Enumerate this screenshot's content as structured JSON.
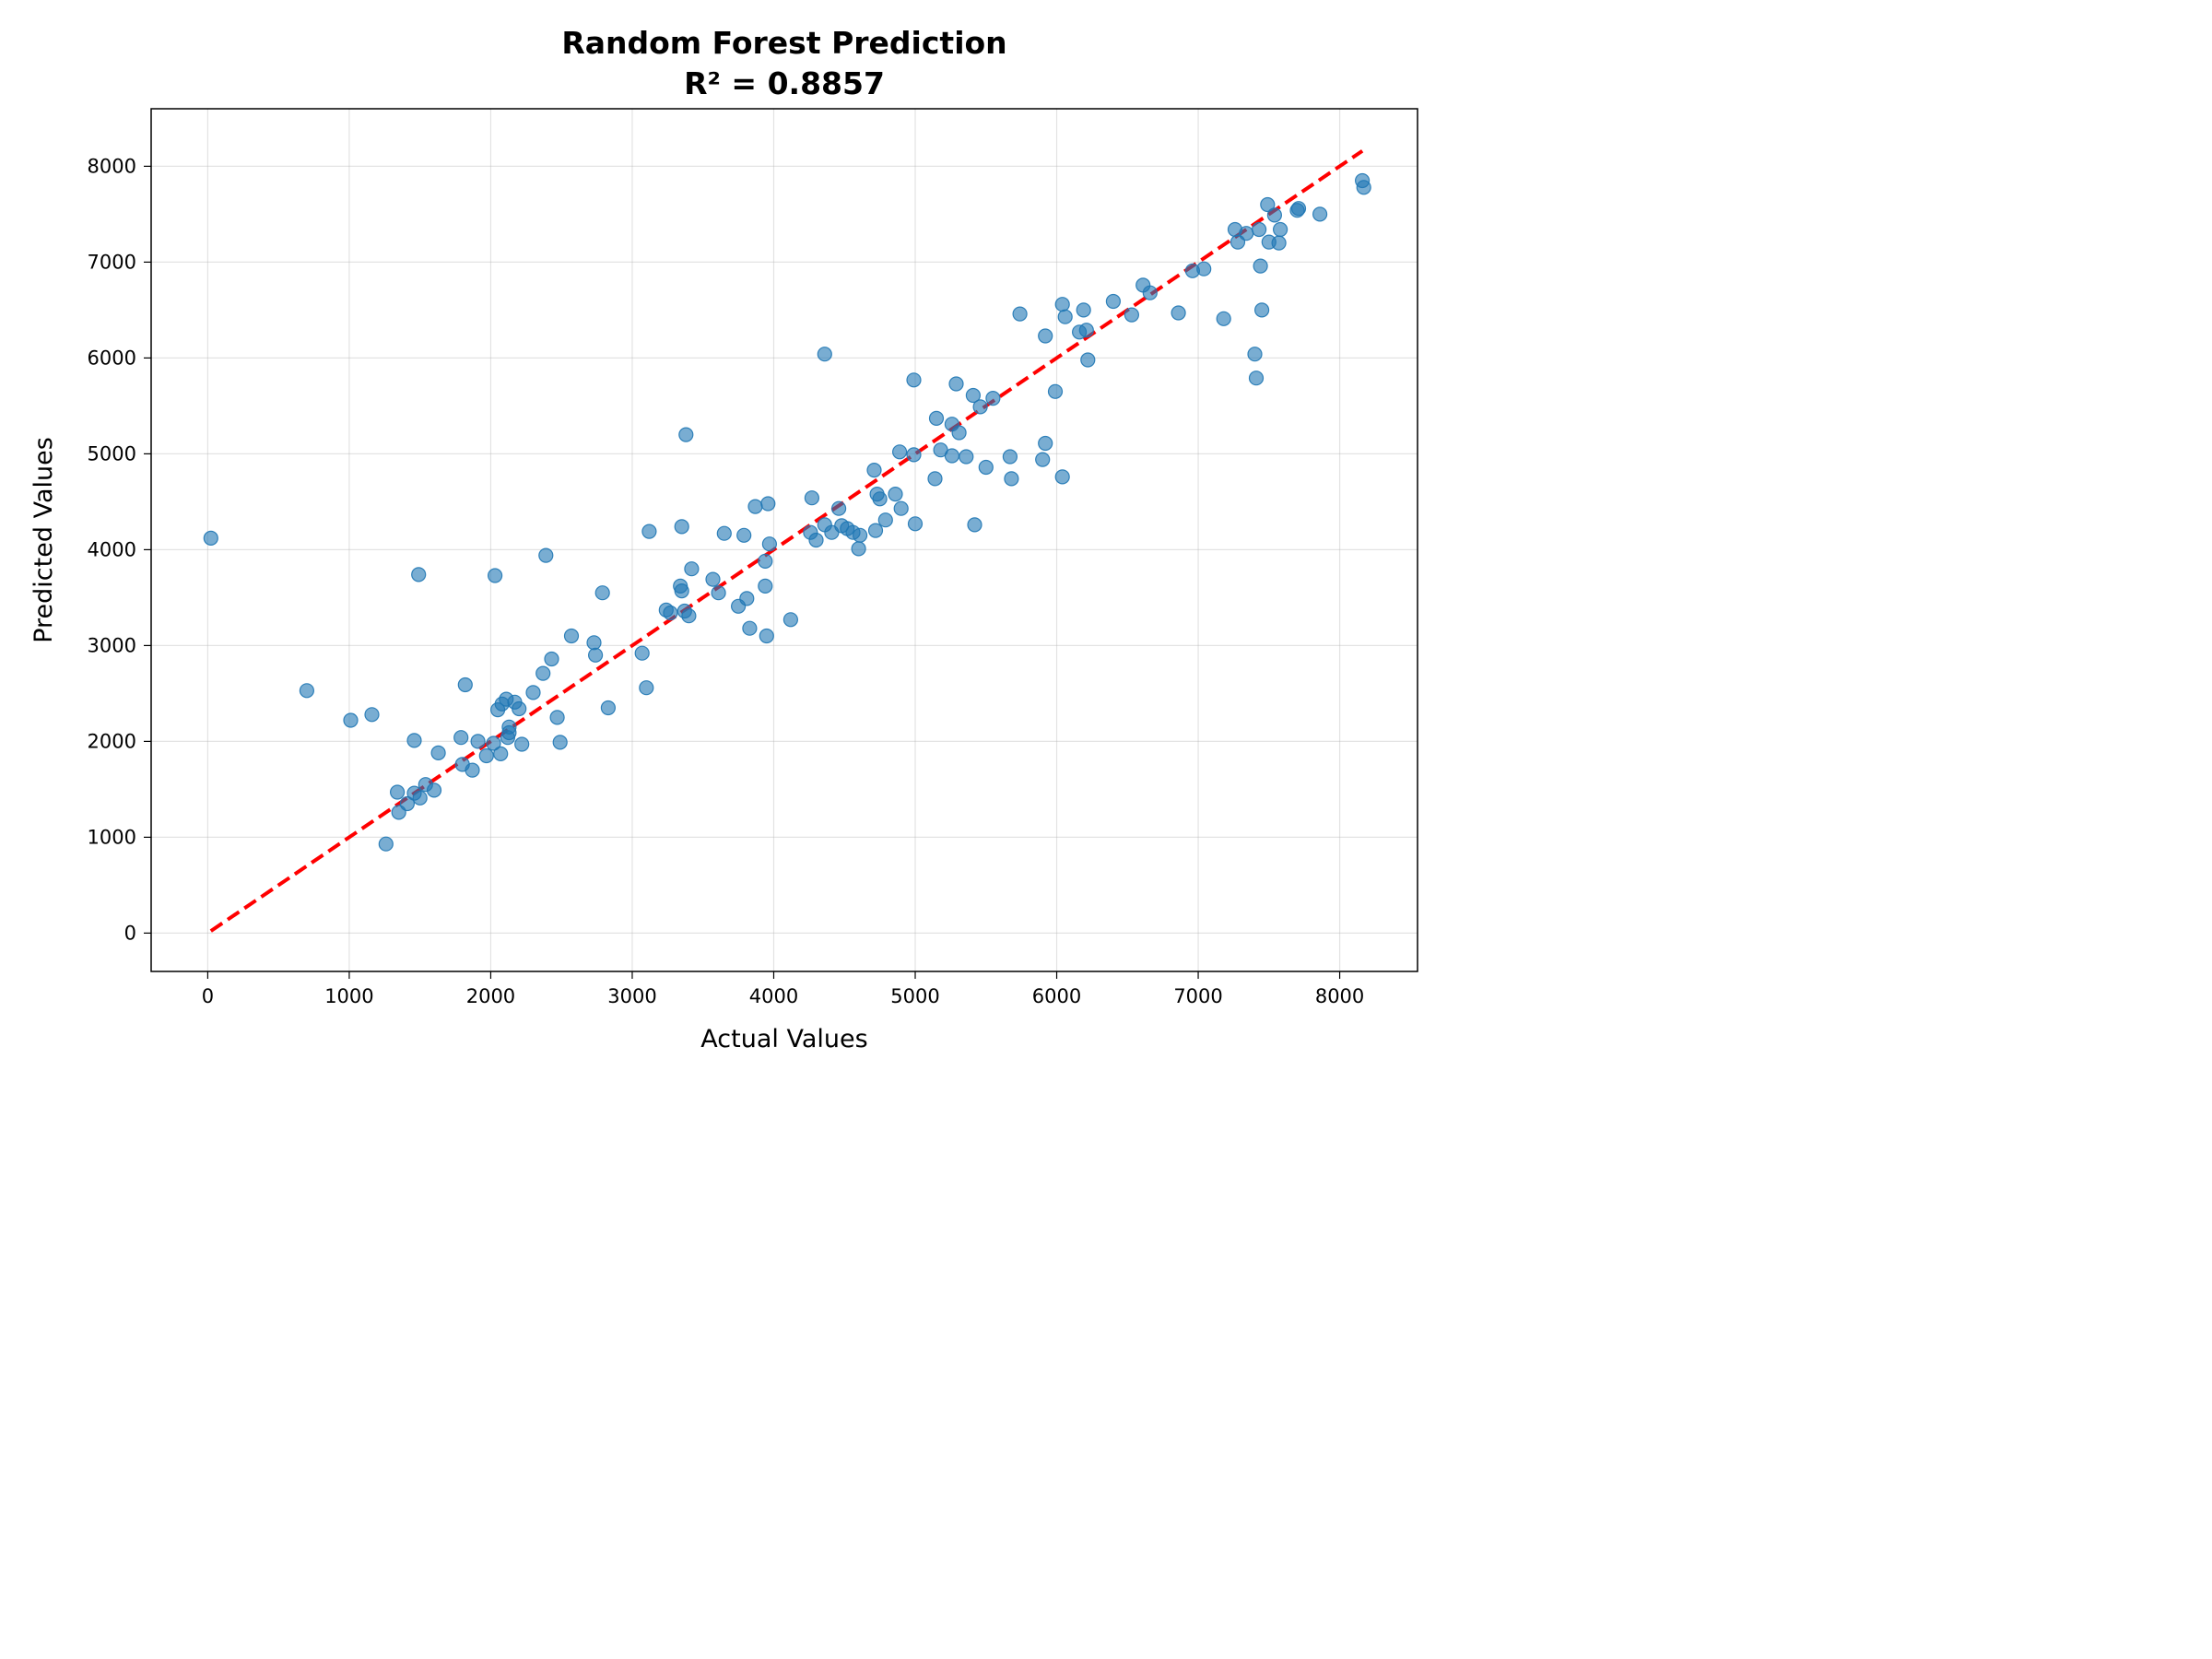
{
  "chart_data": {
    "type": "scatter",
    "title": "Random Forest Prediction",
    "subtitle": "R² = 0.8857",
    "xlabel": "Actual Values",
    "ylabel": "Predicted Values",
    "xlim": [
      -400,
      8550
    ],
    "ylim": [
      -400,
      8600
    ],
    "xticks": [
      0,
      1000,
      2000,
      3000,
      4000,
      5000,
      6000,
      7000,
      8000
    ],
    "yticks": [
      0,
      1000,
      2000,
      3000,
      4000,
      5000,
      6000,
      7000,
      8000
    ],
    "xtick_labels": [
      "0",
      "1000",
      "2000",
      "3000",
      "4000",
      "5000",
      "6000",
      "7000",
      "8000"
    ],
    "ytick_labels": [
      "0",
      "1000",
      "2000",
      "3000",
      "4000",
      "5000",
      "6000",
      "7000",
      "8000"
    ],
    "grid": true,
    "colors": {
      "points": "#1f77b4",
      "reference_line": "#ff0000"
    },
    "reference_line": {
      "style": "dashed",
      "from": [
        22,
        22
      ],
      "to": [
        8160,
        8160
      ]
    },
    "points": [
      [
        22,
        4120
      ],
      [
        700,
        2530
      ],
      [
        1010,
        2220
      ],
      [
        1160,
        2280
      ],
      [
        1260,
        930
      ],
      [
        1340,
        1470
      ],
      [
        1350,
        1260
      ],
      [
        1410,
        1350
      ],
      [
        1460,
        2010
      ],
      [
        1460,
        1460
      ],
      [
        1490,
        3740
      ],
      [
        1500,
        1410
      ],
      [
        1540,
        1550
      ],
      [
        1600,
        1490
      ],
      [
        1630,
        1880
      ],
      [
        1790,
        2040
      ],
      [
        1800,
        1760
      ],
      [
        1820,
        2590
      ],
      [
        1870,
        1700
      ],
      [
        1910,
        2000
      ],
      [
        1970,
        1850
      ],
      [
        2020,
        1980
      ],
      [
        2030,
        3730
      ],
      [
        2050,
        2330
      ],
      [
        2070,
        1870
      ],
      [
        2080,
        2390
      ],
      [
        2110,
        2440
      ],
      [
        2120,
        2040
      ],
      [
        2130,
        2150
      ],
      [
        2130,
        2090
      ],
      [
        2170,
        2410
      ],
      [
        2200,
        2340
      ],
      [
        2220,
        1970
      ],
      [
        2300,
        2510
      ],
      [
        2370,
        2710
      ],
      [
        2390,
        3940
      ],
      [
        2430,
        2860
      ],
      [
        2470,
        2250
      ],
      [
        2490,
        1990
      ],
      [
        2570,
        3100
      ],
      [
        2730,
        3030
      ],
      [
        2740,
        2900
      ],
      [
        2790,
        3550
      ],
      [
        2830,
        2350
      ],
      [
        3070,
        2920
      ],
      [
        3100,
        2560
      ],
      [
        3120,
        4190
      ],
      [
        3240,
        3370
      ],
      [
        3270,
        3340
      ],
      [
        3340,
        3620
      ],
      [
        3350,
        3570
      ],
      [
        3350,
        4240
      ],
      [
        3370,
        3360
      ],
      [
        3380,
        5200
      ],
      [
        3400,
        3310
      ],
      [
        3420,
        3800
      ],
      [
        3570,
        3690
      ],
      [
        3610,
        3550
      ],
      [
        3650,
        4170
      ],
      [
        3750,
        3410
      ],
      [
        3790,
        4150
      ],
      [
        3810,
        3490
      ],
      [
        3830,
        3180
      ],
      [
        3870,
        4450
      ],
      [
        3940,
        3620
      ],
      [
        3940,
        3880
      ],
      [
        3950,
        3100
      ],
      [
        3960,
        4480
      ],
      [
        3970,
        4060
      ],
      [
        4120,
        3270
      ],
      [
        4260,
        4180
      ],
      [
        4270,
        4540
      ],
      [
        4300,
        4100
      ],
      [
        4360,
        6040
      ],
      [
        4360,
        4260
      ],
      [
        4410,
        4180
      ],
      [
        4460,
        4430
      ],
      [
        4480,
        4250
      ],
      [
        4520,
        4220
      ],
      [
        4560,
        4180
      ],
      [
        4600,
        4010
      ],
      [
        4610,
        4150
      ],
      [
        4710,
        4830
      ],
      [
        4720,
        4200
      ],
      [
        4730,
        4580
      ],
      [
        4750,
        4530
      ],
      [
        4790,
        4310
      ],
      [
        4860,
        4580
      ],
      [
        4890,
        5020
      ],
      [
        4900,
        4430
      ],
      [
        4990,
        5770
      ],
      [
        4990,
        4990
      ],
      [
        5000,
        4270
      ],
      [
        5140,
        4740
      ],
      [
        5150,
        5370
      ],
      [
        5180,
        5040
      ],
      [
        5260,
        4980
      ],
      [
        5260,
        5310
      ],
      [
        5290,
        5730
      ],
      [
        5310,
        5220
      ],
      [
        5360,
        4970
      ],
      [
        5410,
        5610
      ],
      [
        5420,
        4260
      ],
      [
        5460,
        5490
      ],
      [
        5500,
        4860
      ],
      [
        5550,
        5580
      ],
      [
        5670,
        4970
      ],
      [
        5680,
        4740
      ],
      [
        5740,
        6460
      ],
      [
        5900,
        4940
      ],
      [
        5920,
        6230
      ],
      [
        5920,
        5110
      ],
      [
        5990,
        5650
      ],
      [
        6040,
        6560
      ],
      [
        6040,
        4760
      ],
      [
        6060,
        6430
      ],
      [
        6160,
        6270
      ],
      [
        6190,
        6500
      ],
      [
        6210,
        6290
      ],
      [
        6220,
        5980
      ],
      [
        6400,
        6590
      ],
      [
        6530,
        6450
      ],
      [
        6610,
        6760
      ],
      [
        6660,
        6680
      ],
      [
        6860,
        6470
      ],
      [
        6960,
        6910
      ],
      [
        7040,
        6930
      ],
      [
        7180,
        6410
      ],
      [
        7260,
        7340
      ],
      [
        7280,
        7210
      ],
      [
        7340,
        7300
      ],
      [
        7400,
        6040
      ],
      [
        7410,
        5790
      ],
      [
        7430,
        7340
      ],
      [
        7440,
        6960
      ],
      [
        7450,
        6500
      ],
      [
        7490,
        7600
      ],
      [
        7500,
        7210
      ],
      [
        7540,
        7490
      ],
      [
        7570,
        7200
      ],
      [
        7580,
        7340
      ],
      [
        7700,
        7540
      ],
      [
        7710,
        7560
      ],
      [
        7860,
        7500
      ],
      [
        8160,
        7850
      ],
      [
        8170,
        7780
      ]
    ]
  }
}
